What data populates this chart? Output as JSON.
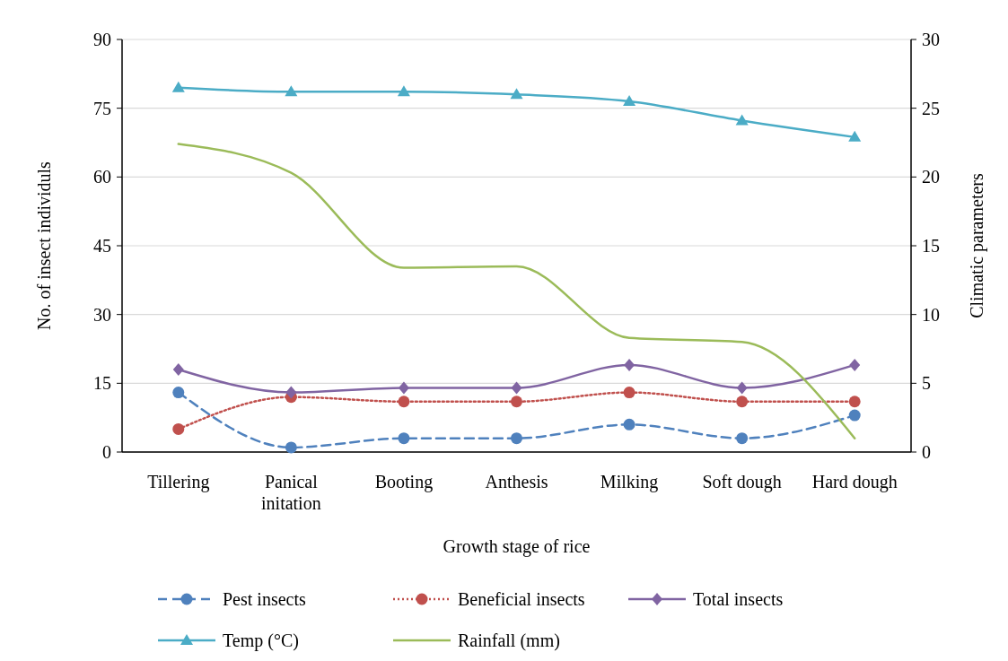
{
  "chart_data": {
    "type": "line",
    "xlabel": "Growth stage of rice",
    "ylabel": "No. of insect individuls",
    "y2label": "Climatic parameters",
    "categories": [
      "Tillering",
      "Panical initation",
      "Booting",
      "Anthesis",
      "Milking",
      "Soft dough",
      "Hard dough"
    ],
    "ylim": [
      0,
      90
    ],
    "yticks": [
      0,
      15,
      30,
      45,
      60,
      75,
      90
    ],
    "y2lim": [
      0,
      30
    ],
    "y2ticks": [
      0,
      5,
      10,
      15,
      20,
      25,
      30
    ],
    "grid": "y",
    "legend": "bottom",
    "series": [
      {
        "name": "Pest insects",
        "color": "#4f81bd",
        "marker": "circle",
        "line_style": "dashed",
        "values": [
          13,
          1,
          3,
          3,
          6,
          3,
          8
        ]
      },
      {
        "name": "Beneficial insects",
        "color": "#c0504d",
        "marker": "circle",
        "line_style": "dotted",
        "values": [
          5,
          12,
          11,
          11,
          13,
          11,
          11
        ]
      },
      {
        "name": "Total insects",
        "color": "#8064a2",
        "marker": "diamond",
        "line_style": "solid",
        "values": [
          18,
          13,
          14,
          14,
          19,
          14,
          19
        ]
      },
      {
        "name": "Temp (°C)",
        "color": "#4bacc6",
        "marker": "triangle",
        "line_style": "solid",
        "axis": "y2",
        "values": [
          26.5,
          26.2,
          26.2,
          26.0,
          25.5,
          24.1,
          22.9
        ]
      },
      {
        "name": "Rainfall (mm)",
        "color": "#9bbb59",
        "marker": "none",
        "line_style": "solid",
        "axis": "y2",
        "values": [
          22.4,
          20.3,
          13.4,
          13.5,
          8.3,
          8.0,
          1.0
        ]
      }
    ]
  }
}
